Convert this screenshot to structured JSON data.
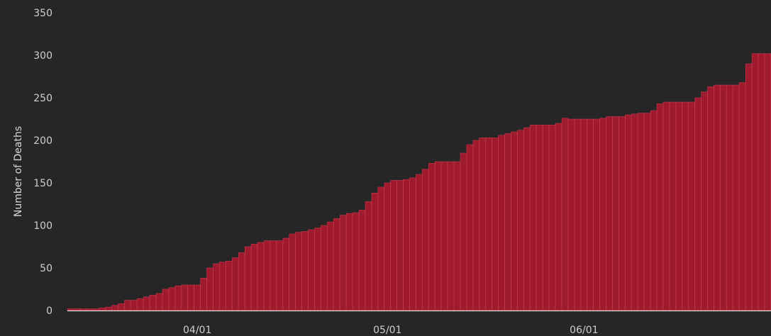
{
  "chart_data": {
    "type": "bar",
    "ylabel": "Number of Deaths",
    "xlabel": "",
    "ylim": [
      0,
      350
    ],
    "y_ticks": [
      0,
      50,
      100,
      150,
      200,
      250,
      300,
      350
    ],
    "x_ticks": [
      {
        "date": "2020-04-01",
        "label": "04/01"
      },
      {
        "date": "2020-05-01",
        "label": "05/01"
      },
      {
        "date": "2020-06-01",
        "label": "06/01"
      }
    ],
    "dates": [
      "2020-03-12",
      "2020-03-13",
      "2020-03-14",
      "2020-03-15",
      "2020-03-16",
      "2020-03-17",
      "2020-03-18",
      "2020-03-19",
      "2020-03-20",
      "2020-03-21",
      "2020-03-22",
      "2020-03-23",
      "2020-03-24",
      "2020-03-25",
      "2020-03-26",
      "2020-03-27",
      "2020-03-28",
      "2020-03-29",
      "2020-03-30",
      "2020-03-31",
      "2020-04-01",
      "2020-04-02",
      "2020-04-03",
      "2020-04-04",
      "2020-04-05",
      "2020-04-06",
      "2020-04-07",
      "2020-04-08",
      "2020-04-09",
      "2020-04-10",
      "2020-04-11",
      "2020-04-12",
      "2020-04-13",
      "2020-04-14",
      "2020-04-15",
      "2020-04-16",
      "2020-04-17",
      "2020-04-18",
      "2020-04-19",
      "2020-04-20",
      "2020-04-21",
      "2020-04-22",
      "2020-04-23",
      "2020-04-24",
      "2020-04-25",
      "2020-04-26",
      "2020-04-27",
      "2020-04-28",
      "2020-04-29",
      "2020-04-30",
      "2020-05-01",
      "2020-05-02",
      "2020-05-03",
      "2020-05-04",
      "2020-05-05",
      "2020-05-06",
      "2020-05-07",
      "2020-05-08",
      "2020-05-09",
      "2020-05-10",
      "2020-05-11",
      "2020-05-12",
      "2020-05-13",
      "2020-05-14",
      "2020-05-15",
      "2020-05-16",
      "2020-05-17",
      "2020-05-18",
      "2020-05-19",
      "2020-05-20",
      "2020-05-21",
      "2020-05-22",
      "2020-05-23",
      "2020-05-24",
      "2020-05-25",
      "2020-05-26",
      "2020-05-27",
      "2020-05-28",
      "2020-05-29",
      "2020-05-30",
      "2020-05-31",
      "2020-06-01",
      "2020-06-02",
      "2020-06-03",
      "2020-06-04",
      "2020-06-05",
      "2020-06-06",
      "2020-06-07",
      "2020-06-08",
      "2020-06-09",
      "2020-06-10",
      "2020-06-11",
      "2020-06-12",
      "2020-06-13",
      "2020-06-14",
      "2020-06-15",
      "2020-06-16",
      "2020-06-17",
      "2020-06-18",
      "2020-06-19",
      "2020-06-20",
      "2020-06-21",
      "2020-06-22",
      "2020-06-23",
      "2020-06-24",
      "2020-06-25",
      "2020-06-26",
      "2020-06-27",
      "2020-06-28",
      "2020-06-29",
      "2020-06-30"
    ],
    "series": [
      {
        "values": [
          2,
          2,
          2,
          2,
          2,
          3,
          4,
          6,
          8,
          12,
          12,
          14,
          16,
          18,
          20,
          25,
          27,
          29,
          30,
          30,
          30,
          38,
          50,
          55,
          57,
          58,
          62,
          68,
          75,
          78,
          80,
          82,
          82,
          82,
          85,
          90,
          92,
          93,
          95,
          97,
          100,
          104,
          108,
          112,
          114,
          115,
          118,
          128,
          138,
          145,
          150,
          153,
          153,
          154,
          156,
          160,
          166,
          173,
          175,
          175,
          175,
          175,
          185,
          195,
          200,
          203,
          203,
          203,
          206,
          208,
          210,
          212,
          215,
          218,
          218,
          218,
          218,
          220,
          226,
          225,
          225,
          225,
          225,
          225,
          226,
          228,
          228,
          228,
          230,
          231,
          232,
          232,
          235,
          243,
          245,
          245,
          245,
          245,
          245,
          250,
          257,
          263,
          265,
          265,
          265,
          265,
          268,
          290,
          302,
          302,
          302
        ]
      }
    ],
    "bar_color": "#9e1b2e",
    "bar_edge_color": "#c8364c",
    "background_color": "#262626"
  }
}
